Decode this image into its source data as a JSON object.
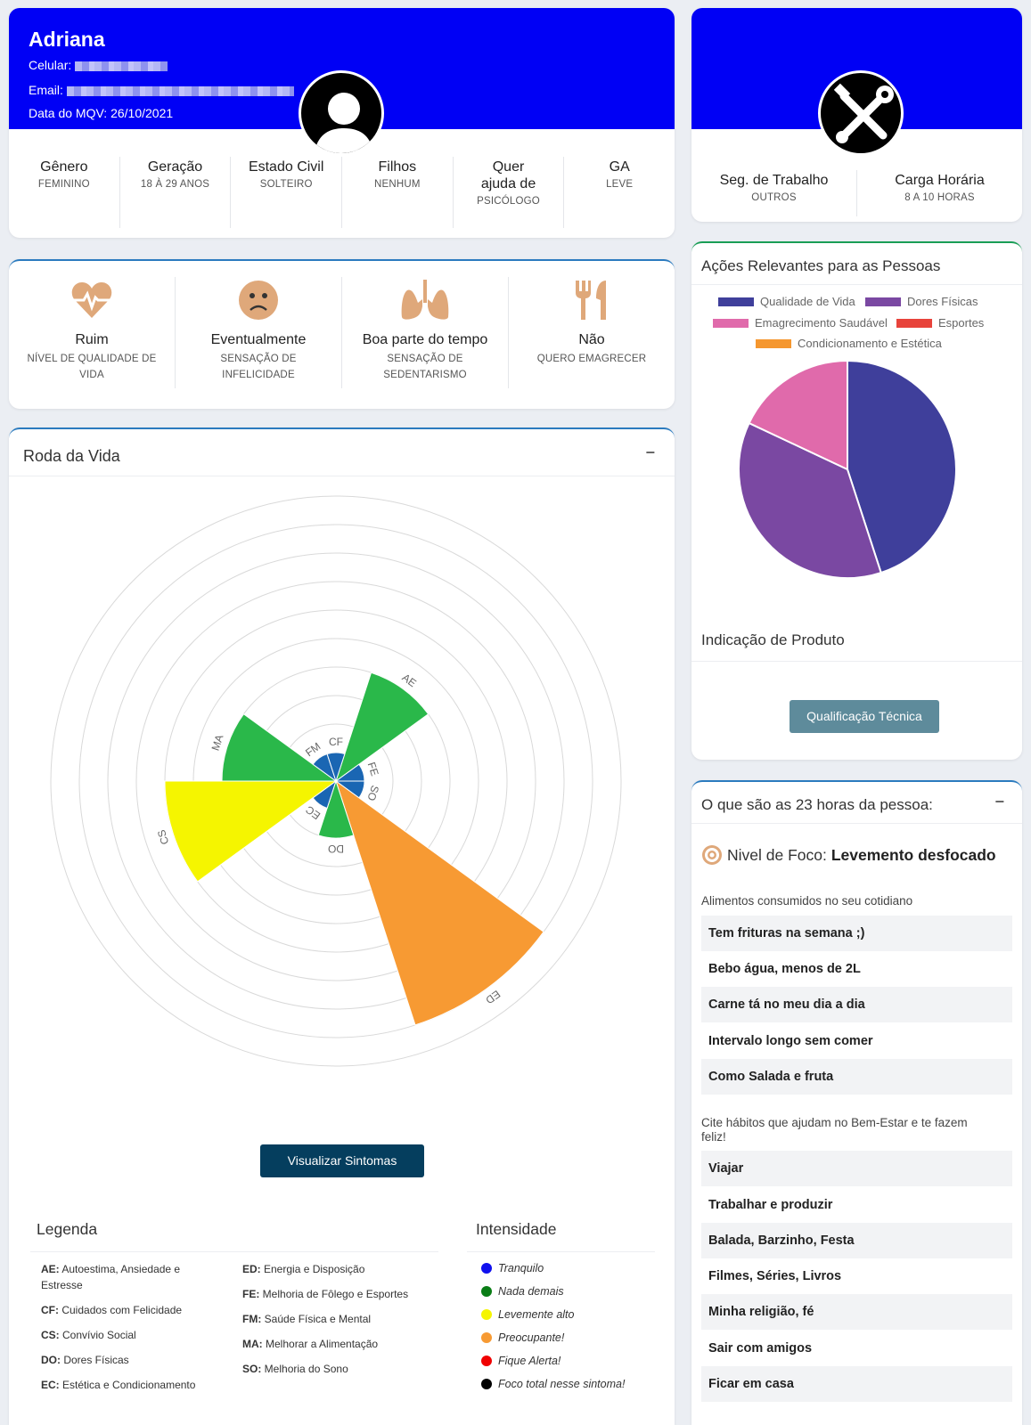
{
  "profile": {
    "name": "Adriana",
    "phone_label": "Celular:",
    "email_label": "Email:",
    "date_label": "Data do MQV: 26/10/2021",
    "stats": [
      {
        "title": "Gênero",
        "sub": "FEMININO"
      },
      {
        "title": "Geração",
        "sub": "18 À 29 ANOS"
      },
      {
        "title": "Estado Civil",
        "sub": "SOLTEIRO"
      },
      {
        "title": "Filhos",
        "sub": "NENHUM"
      },
      {
        "title": "Quer ajuda de",
        "sub": "PSICÓLOGO"
      },
      {
        "title": "GA",
        "sub": "LEVE"
      }
    ]
  },
  "work": {
    "stats": [
      {
        "title": "Seg. de Trabalho",
        "sub": "OUTROS"
      },
      {
        "title": "Carga Horária",
        "sub": "8 A 10 HORAS"
      }
    ]
  },
  "indicators": [
    {
      "icon": "heart-pulse-icon",
      "title": "Ruim",
      "sub": "NÍVEL DE QUALIDADE DE VIDA"
    },
    {
      "icon": "sad-face-icon",
      "title": "Eventualmente",
      "sub": "SENSAÇÃO DE INFELICIDADE"
    },
    {
      "icon": "lungs-icon",
      "title": "Boa parte do tempo",
      "sub": "SENSAÇÃO DE SEDENTARISMO"
    },
    {
      "icon": "utensils-icon",
      "title": "Não",
      "sub": "QUERO EMAGRECER"
    }
  ],
  "wheel": {
    "title": "Roda da Vida",
    "collapse": "−",
    "button": "Visualizar Sintomas",
    "legend_title": "Legenda",
    "intensity_title": "Intensidade",
    "legend_left": [
      {
        "code": "AE:",
        "text": " Autoestima, Ansiedade e Estresse"
      },
      {
        "code": "CF:",
        "text": " Cuidados com Felicidade"
      },
      {
        "code": "CS:",
        "text": " Convívio Social"
      },
      {
        "code": "DO:",
        "text": " Dores Físicas"
      },
      {
        "code": "EC:",
        "text": " Estética e Condicionamento"
      }
    ],
    "legend_right": [
      {
        "code": "ED:",
        "text": " Energia e Disposição"
      },
      {
        "code": "FE:",
        "text": " Melhoria de Fôlego e Esportes"
      },
      {
        "code": "FM:",
        "text": " Saúde Física e Mental"
      },
      {
        "code": "MA:",
        "text": " Melhorar a Alimentação"
      },
      {
        "code": "SO:",
        "text": " Melhoria do Sono"
      }
    ],
    "intensity": [
      {
        "label": "Tranquilo",
        "color": "#1010ee"
      },
      {
        "label": "Nada demais",
        "color": "#0a7d16"
      },
      {
        "label": "Levemente alto",
        "color": "#f5f500"
      },
      {
        "label": "Preocupante!",
        "color": "#f79a33"
      },
      {
        "label": "Fique Alerta!",
        "color": "#f00000"
      },
      {
        "label": "Foco total nesse sintoma!",
        "color": "#000000"
      }
    ]
  },
  "chart_data": [
    {
      "type": "polar-area",
      "title": "Roda da Vida",
      "categories": [
        "AE",
        "FE",
        "SO",
        "ED",
        "DO",
        "EC",
        "CS",
        "MA",
        "FM",
        "CF"
      ],
      "values": [
        4,
        1,
        1,
        9,
        2,
        1,
        6,
        4,
        1,
        1
      ],
      "colors": [
        "#2ab84a",
        "#1a66b3",
        "#1a66b3",
        "#f79a33",
        "#2ab84a",
        "#1a66b3",
        "#f5f500",
        "#2ab84a",
        "#1a66b3",
        "#1a66b3"
      ],
      "r_max": 10,
      "rings": 10
    },
    {
      "type": "pie",
      "title": "Ações Relevantes para as Pessoas",
      "legend_position": "top",
      "series": [
        {
          "name": "Qualidade de Vida",
          "value": 45,
          "color": "#3f3f9b"
        },
        {
          "name": "Dores Físicas",
          "value": 37,
          "color": "#7a48a2"
        },
        {
          "name": "Emagrecimento Saudável",
          "value": 18,
          "color": "#e06aab"
        },
        {
          "name": "Esportes",
          "value": 0,
          "color": "#e8433b"
        },
        {
          "name": "Condicionamento e Estética",
          "value": 0,
          "color": "#f5972f"
        }
      ]
    }
  ],
  "actions": {
    "title": "Ações Relevantes para as Pessoas",
    "product_title": "Indicação de Produto",
    "button": "Qualificação Técnica"
  },
  "hours": {
    "title": "O que são as 23 horas da pessoa:",
    "collapse": "−",
    "focus_label": "Nivel de Foco: ",
    "focus_value": "Levemento desfocado",
    "food_label": "Alimentos consumidos no seu cotidiano",
    "food": [
      "Tem frituras na semana ;)",
      "Bebo água, menos de 2L",
      "Carne tá no meu dia a dia",
      "Intervalo longo sem comer",
      "Como Salada e fruta"
    ],
    "habits_label": "Cite hábitos que ajudam no Bem-Estar e te fazem feliz!",
    "habits": [
      "Viajar",
      "Trabalhar e produzir",
      "Balada, Barzinho, Festa",
      "Filmes, Séries, Livros",
      "Minha religião, fé",
      "Sair com amigos",
      "Ficar em casa"
    ]
  }
}
